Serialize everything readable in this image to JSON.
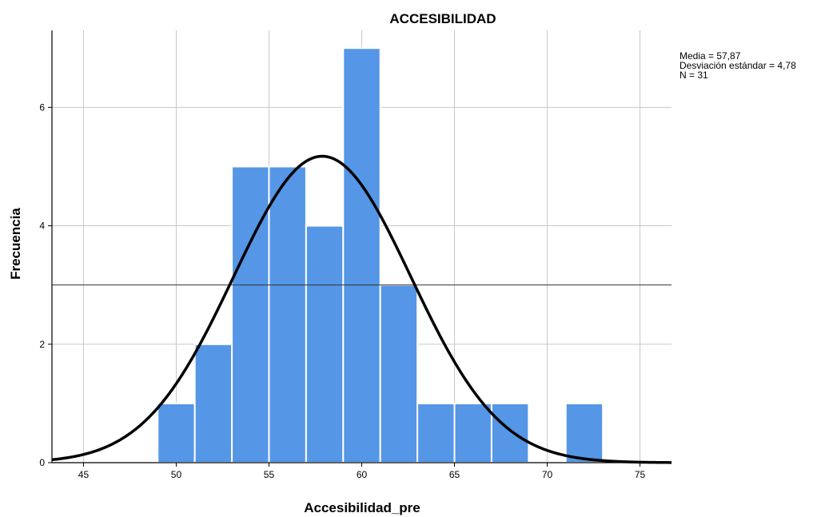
{
  "chart_data": {
    "type": "bar",
    "title": "ACCESIBILIDAD",
    "xlabel": "Accesibilidad_pre",
    "ylabel": "Frecuencia",
    "xlim": [
      43.3,
      76.7
    ],
    "ylim": [
      0,
      7.3
    ],
    "x_ticks": [
      45,
      50,
      55,
      60,
      65,
      70,
      75
    ],
    "y_ticks": [
      0,
      2,
      4,
      6
    ],
    "bin_width": 2,
    "bins": [
      {
        "start": 49,
        "end": 51,
        "count": 1
      },
      {
        "start": 51,
        "end": 53,
        "count": 2
      },
      {
        "start": 53,
        "end": 55,
        "count": 5
      },
      {
        "start": 55,
        "end": 57,
        "count": 5
      },
      {
        "start": 57,
        "end": 59,
        "count": 4
      },
      {
        "start": 59,
        "end": 61,
        "count": 7
      },
      {
        "start": 61,
        "end": 63,
        "count": 3
      },
      {
        "start": 63,
        "end": 65,
        "count": 1
      },
      {
        "start": 65,
        "end": 67,
        "count": 1
      },
      {
        "start": 67,
        "end": 69,
        "count": 1
      },
      {
        "start": 69,
        "end": 71,
        "count": 0
      },
      {
        "start": 71,
        "end": 73,
        "count": 1
      }
    ],
    "normal_curve": {
      "mean": 57.87,
      "sd": 4.78,
      "n": 31
    },
    "reference_line_y": 3,
    "bar_color": "#5596e6",
    "bar_edge_color": "#ffffff",
    "curve_color": "#000000",
    "grid": true,
    "stats_text": [
      "Media = 57,87",
      "Desviación estándar = 4,78",
      "N = 31"
    ],
    "stats_placement": "top-right"
  }
}
